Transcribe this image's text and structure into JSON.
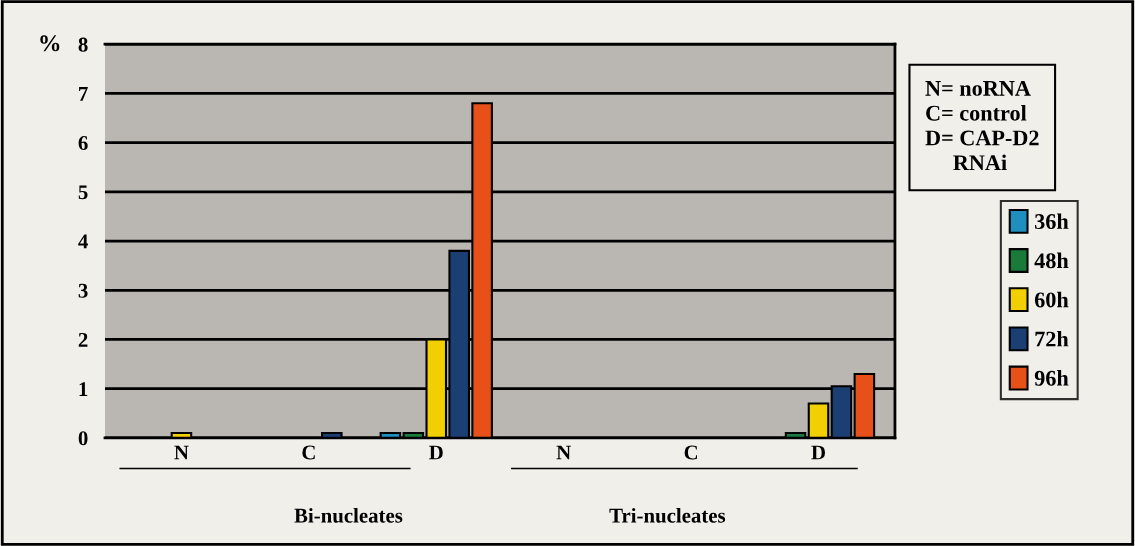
{
  "chart_data": {
    "type": "bar",
    "ylabel": "%",
    "categories": [
      "N",
      "C",
      "D",
      "N",
      "C",
      "D"
    ],
    "series": [
      {
        "name": "36h",
        "color": "#1f8fbf",
        "values": [
          0,
          0,
          0.1,
          0,
          0,
          0
        ]
      },
      {
        "name": "48h",
        "color": "#1a7a3a",
        "values": [
          0,
          0,
          0.1,
          0,
          0,
          0.1
        ]
      },
      {
        "name": "60h",
        "color": "#f2cf00",
        "values": [
          0.1,
          0,
          2.0,
          0,
          0,
          0.7
        ]
      },
      {
        "name": "72h",
        "color": "#1c3f73",
        "values": [
          0,
          0.1,
          3.8,
          0,
          0,
          1.05
        ]
      },
      {
        "name": "96h",
        "color": "#e8501a",
        "values": [
          0,
          0,
          6.8,
          0,
          0,
          1.3
        ]
      }
    ],
    "ylim": [
      0,
      8
    ],
    "yticks": [
      0,
      1,
      2,
      3,
      4,
      5,
      6,
      7,
      8
    ],
    "grid": "y",
    "legend": "right",
    "annotations": [
      "Bi-nucleates",
      "Tri-nucleates",
      "N= noRNA\nC= control\nD= CAP-D2\n     RNAi"
    ]
  }
}
